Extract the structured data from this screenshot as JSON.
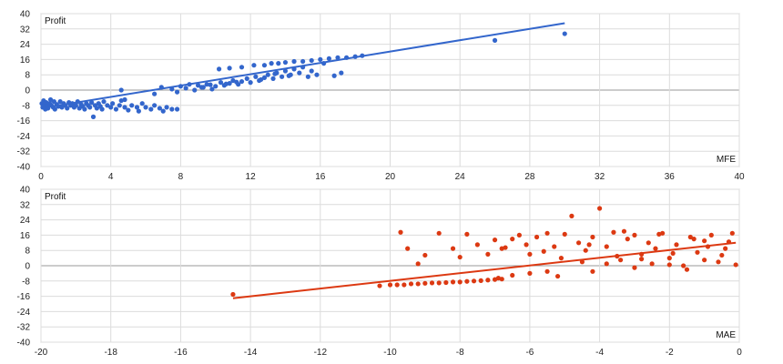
{
  "chart_data": [
    {
      "type": "scatter",
      "ylabel": "Profit",
      "xlabel": "MFE",
      "xlim": [
        0,
        40
      ],
      "ylim": [
        -40,
        40
      ],
      "x_ticks": [
        0,
        4,
        8,
        12,
        16,
        20,
        24,
        28,
        32,
        36,
        40
      ],
      "y_ticks": [
        40,
        32,
        24,
        16,
        8,
        0,
        -8,
        -16,
        -24,
        -32,
        -40
      ],
      "grid": true,
      "color": "#3366cc",
      "trendline": {
        "x": [
          0,
          30
        ],
        "y": [
          -9.5,
          35
        ]
      },
      "series": [
        {
          "points": [
            [
              0.05,
              -7
            ],
            [
              0.1,
              -9
            ],
            [
              0.15,
              -5.5
            ],
            [
              0.2,
              -8
            ],
            [
              0.25,
              -10
            ],
            [
              0.3,
              -6.5
            ],
            [
              0.35,
              -8.5
            ],
            [
              0.4,
              -9.5
            ],
            [
              0.5,
              -7
            ],
            [
              0.55,
              -5
            ],
            [
              0.6,
              -8
            ],
            [
              0.7,
              -9
            ],
            [
              0.75,
              -6
            ],
            [
              0.8,
              -10
            ],
            [
              0.9,
              -7.5
            ],
            [
              1.0,
              -8.5
            ],
            [
              1.1,
              -6
            ],
            [
              1.2,
              -9
            ],
            [
              1.3,
              -7
            ],
            [
              1.4,
              -8
            ],
            [
              1.5,
              -9.5
            ],
            [
              1.6,
              -6.5
            ],
            [
              1.7,
              -8
            ],
            [
              1.8,
              -7
            ],
            [
              1.9,
              -9
            ],
            [
              2.0,
              -8
            ],
            [
              2.1,
              -6
            ],
            [
              2.2,
              -9.5
            ],
            [
              2.3,
              -7.5
            ],
            [
              2.4,
              -8.5
            ],
            [
              2.5,
              -10
            ],
            [
              2.6,
              -7
            ],
            [
              2.7,
              -8
            ],
            [
              2.8,
              -9
            ],
            [
              2.9,
              -6.5
            ],
            [
              3.0,
              -14
            ],
            [
              3.1,
              -8
            ],
            [
              3.2,
              -9.5
            ],
            [
              3.3,
              -7
            ],
            [
              3.4,
              -8.5
            ],
            [
              3.5,
              -10
            ],
            [
              3.6,
              -6
            ],
            [
              3.8,
              -8
            ],
            [
              4.0,
              -9
            ],
            [
              4.1,
              -7
            ],
            [
              4.3,
              -10
            ],
            [
              4.5,
              -8
            ],
            [
              4.6,
              -5.5
            ],
            [
              4.8,
              -9
            ],
            [
              5.0,
              -10.5
            ],
            [
              5.2,
              -8
            ],
            [
              5.5,
              -9
            ],
            [
              5.6,
              -11
            ],
            [
              5.8,
              -7
            ],
            [
              6.0,
              -9
            ],
            [
              6.3,
              -10
            ],
            [
              6.5,
              -8
            ],
            [
              6.8,
              -9.5
            ],
            [
              7.0,
              -11
            ],
            [
              7.2,
              -9
            ],
            [
              7.5,
              -10
            ],
            [
              7.8,
              -10
            ],
            [
              4.8,
              -5
            ],
            [
              4.6,
              0
            ],
            [
              6.5,
              -2
            ],
            [
              6.9,
              1.5
            ],
            [
              7.5,
              0.5
            ],
            [
              7.8,
              -1
            ],
            [
              8.0,
              2
            ],
            [
              8.3,
              1
            ],
            [
              8.5,
              3
            ],
            [
              8.8,
              0
            ],
            [
              9.0,
              2.5
            ],
            [
              9.3,
              1.5
            ],
            [
              9.5,
              3
            ],
            [
              9.8,
              0.5
            ],
            [
              10.0,
              2
            ],
            [
              10.3,
              4
            ],
            [
              10.5,
              2.5
            ],
            [
              10.8,
              3.5
            ],
            [
              11.0,
              5
            ],
            [
              11.3,
              3
            ],
            [
              11.5,
              4.5
            ],
            [
              11.8,
              6
            ],
            [
              12.0,
              4
            ],
            [
              12.3,
              7
            ],
            [
              12.5,
              5
            ],
            [
              12.8,
              6.5
            ],
            [
              13.0,
              8
            ],
            [
              13.3,
              6
            ],
            [
              13.5,
              9
            ],
            [
              13.8,
              7
            ],
            [
              14.0,
              10
            ],
            [
              14.3,
              8
            ],
            [
              14.5,
              11
            ],
            [
              14.8,
              9
            ],
            [
              15.0,
              12
            ],
            [
              15.3,
              7
            ],
            [
              15.5,
              10
            ],
            [
              15.8,
              8
            ],
            [
              10.2,
              11
            ],
            [
              10.8,
              11.5
            ],
            [
              11.5,
              12
            ],
            [
              12.2,
              13
            ],
            [
              12.8,
              13
            ],
            [
              13.2,
              14
            ],
            [
              13.6,
              14
            ],
            [
              14.0,
              14.5
            ],
            [
              14.5,
              15
            ],
            [
              15.0,
              15
            ],
            [
              15.5,
              15.5
            ],
            [
              16.0,
              16
            ],
            [
              16.5,
              16.5
            ],
            [
              17.0,
              17
            ],
            [
              17.5,
              17
            ],
            [
              18.0,
              17.5
            ],
            [
              18.4,
              18
            ],
            [
              16.8,
              7.5
            ],
            [
              16.2,
              14
            ],
            [
              17.2,
              9
            ],
            [
              9.2,
              1.5
            ],
            [
              9.7,
              2.8
            ],
            [
              10.6,
              3.2
            ],
            [
              11.2,
              4.2
            ],
            [
              12.6,
              5.5
            ],
            [
              13.4,
              8.5
            ],
            [
              14.2,
              7.5
            ],
            [
              26.0,
              26
            ],
            [
              30.0,
              29.5
            ]
          ]
        }
      ]
    },
    {
      "type": "scatter",
      "ylabel": "Profit",
      "xlabel": "MAE",
      "xlim": [
        -20,
        0
      ],
      "ylim": [
        -40,
        40
      ],
      "x_ticks": [
        -20,
        -18,
        -16,
        -14,
        -12,
        -10,
        -8,
        -6,
        -4,
        -2,
        0
      ],
      "y_ticks": [
        40,
        32,
        24,
        16,
        8,
        0,
        -8,
        -16,
        -24,
        -32,
        -40
      ],
      "grid": true,
      "color": "#dc3912",
      "trendline": {
        "x": [
          -14.5,
          -0.1
        ],
        "y": [
          -17,
          12
        ]
      },
      "series": [
        {
          "points": [
            [
              -14.5,
              -15
            ],
            [
              -10.3,
              -10.5
            ],
            [
              -10.0,
              -10
            ],
            [
              -9.8,
              -10
            ],
            [
              -9.6,
              -10
            ],
            [
              -9.4,
              -9.5
            ],
            [
              -9.2,
              -9.5
            ],
            [
              -9.0,
              -9.2
            ],
            [
              -8.8,
              -9
            ],
            [
              -8.6,
              -9
            ],
            [
              -8.4,
              -8.8
            ],
            [
              -8.2,
              -8.5
            ],
            [
              -8.0,
              -8.5
            ],
            [
              -7.8,
              -8.2
            ],
            [
              -7.6,
              -8
            ],
            [
              -7.4,
              -7.8
            ],
            [
              -7.2,
              -7.5
            ],
            [
              -7.0,
              -7.2
            ],
            [
              -6.8,
              -7
            ],
            [
              -6.9,
              -6.5
            ],
            [
              -9.7,
              17.5
            ],
            [
              -9.5,
              9
            ],
            [
              -9.2,
              1
            ],
            [
              -9.0,
              5.5
            ],
            [
              -8.6,
              17
            ],
            [
              -8.2,
              9
            ],
            [
              -8.0,
              4.5
            ],
            [
              -7.8,
              16.5
            ],
            [
              -7.5,
              11
            ],
            [
              -7.2,
              6
            ],
            [
              -7.0,
              13.5
            ],
            [
              -6.8,
              9
            ],
            [
              -6.5,
              14
            ],
            [
              -6.3,
              16
            ],
            [
              -6.1,
              11
            ],
            [
              -6.0,
              6
            ],
            [
              -5.8,
              15
            ],
            [
              -5.5,
              17
            ],
            [
              -5.3,
              10
            ],
            [
              -5.1,
              4
            ],
            [
              -5.0,
              16.5
            ],
            [
              -4.8,
              26
            ],
            [
              -4.6,
              12
            ],
            [
              -4.4,
              8
            ],
            [
              -4.2,
              15
            ],
            [
              -4.0,
              30
            ],
            [
              -3.8,
              10
            ],
            [
              -3.6,
              17.5
            ],
            [
              -3.4,
              3
            ],
            [
              -3.2,
              14
            ],
            [
              -3.0,
              16
            ],
            [
              -2.8,
              6
            ],
            [
              -2.6,
              12
            ],
            [
              -2.4,
              9
            ],
            [
              -2.2,
              17
            ],
            [
              -2.0,
              4
            ],
            [
              -1.8,
              11
            ],
            [
              -1.6,
              0
            ],
            [
              -1.4,
              15
            ],
            [
              -1.2,
              7
            ],
            [
              -1.0,
              13
            ],
            [
              -0.8,
              16
            ],
            [
              -0.6,
              2
            ],
            [
              -0.4,
              9
            ],
            [
              -0.2,
              17
            ],
            [
              -0.1,
              0.5
            ],
            [
              -1.5,
              -2
            ],
            [
              -2.5,
              1
            ],
            [
              -3.5,
              5
            ],
            [
              -4.5,
              2
            ],
            [
              -5.5,
              -3
            ],
            [
              -6.0,
              -4
            ],
            [
              -6.5,
              -5
            ],
            [
              -5.2,
              -5.5
            ],
            [
              -4.2,
              -3
            ],
            [
              -3.0,
              -1
            ],
            [
              -2.0,
              0.5
            ],
            [
              -1.0,
              3
            ],
            [
              -0.5,
              5.5
            ],
            [
              -3.8,
              1
            ],
            [
              -2.8,
              3.5
            ],
            [
              -1.9,
              6.5
            ],
            [
              -0.9,
              10
            ],
            [
              -0.3,
              12.5
            ],
            [
              -1.3,
              14
            ],
            [
              -2.3,
              16.5
            ],
            [
              -3.3,
              18
            ],
            [
              -4.3,
              11
            ],
            [
              -5.6,
              7.5
            ],
            [
              -6.7,
              9.5
            ]
          ]
        }
      ]
    }
  ]
}
